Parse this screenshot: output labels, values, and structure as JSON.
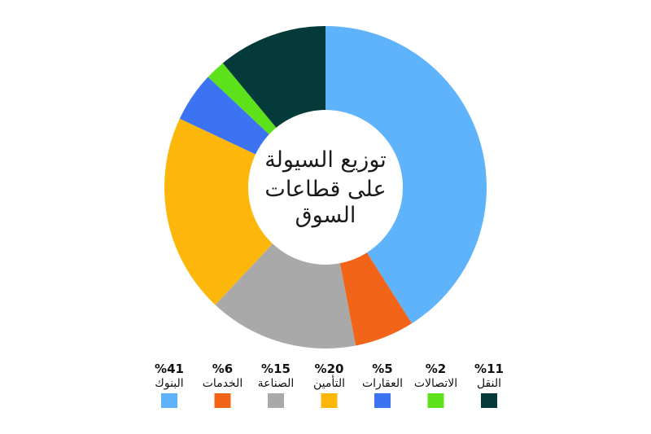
{
  "chart_data": {
    "type": "pie",
    "title_lines": [
      "توزيع السيولة",
      "على قطاعات",
      "السوق"
    ],
    "slices": [
      {
        "label": "البنوك",
        "value": 41,
        "display": "%41",
        "color": "#5FB3FA"
      },
      {
        "label": "الخدمات",
        "value": 6,
        "display": "%6",
        "color": "#F26418"
      },
      {
        "label": "الصناعة",
        "value": 15,
        "display": "%15",
        "color": "#A9A9A9"
      },
      {
        "label": "التأمين",
        "value": 20,
        "display": "%20",
        "color": "#FDB70A"
      },
      {
        "label": "العقارات",
        "value": 5,
        "display": "%5",
        "color": "#3C73F2"
      },
      {
        "label": "الاتصالات",
        "value": 2,
        "display": "%2",
        "color": "#5CE11A"
      },
      {
        "label": "النقل",
        "value": 11,
        "display": "%11",
        "color": "#053A3A"
      }
    ],
    "legend_position": "bottom"
  }
}
